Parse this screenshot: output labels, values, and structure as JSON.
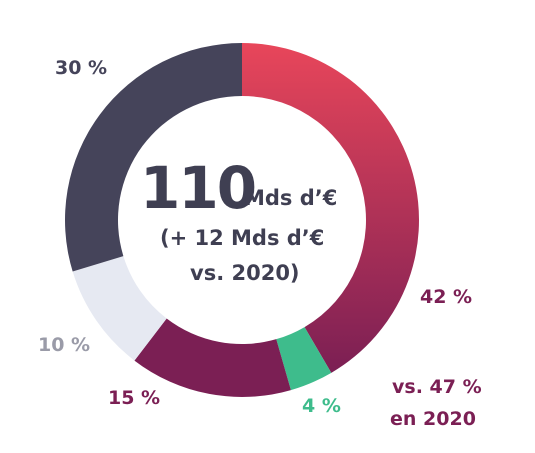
{
  "chart_data": {
    "type": "pie",
    "center": {
      "value": "110",
      "unit": "Mds d’€",
      "line2": "(+ 12 Mds d’€",
      "line3": "vs. 2020)"
    },
    "slices": [
      {
        "label": "42 %",
        "value": 42,
        "color_start": "#e8465a",
        "color_end": "#7b1f54"
      },
      {
        "label": "4 %",
        "value": 4,
        "color": "#3ebc8c"
      },
      {
        "label": "15 %",
        "value": 15,
        "color": "#7b1f54"
      },
      {
        "label": "10 %",
        "value": 10,
        "color": "#e6e9f2"
      },
      {
        "label": "30 %",
        "value": 30,
        "color": "#45445a"
      }
    ],
    "annotation": {
      "line1": "vs. 47 %",
      "line2": "en 2020"
    },
    "label_colors": {
      "42 %": "#7b1f54",
      "4 %": "#3ebc8c",
      "15 %": "#7b1f54",
      "10 %": "#9a9ba8",
      "30 %": "#45445a",
      "annotation": "#7b1f54"
    }
  }
}
